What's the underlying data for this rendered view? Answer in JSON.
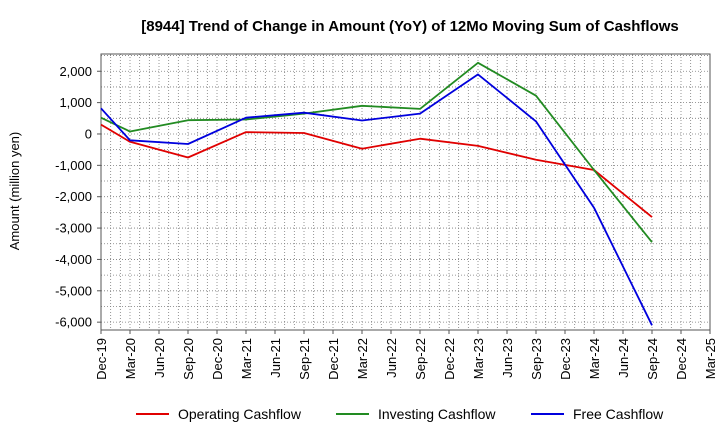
{
  "chart_data": {
    "type": "line",
    "title": "[8944]  Trend of Change in Amount (YoY) of 12Mo Moving Sum of Cashflows",
    "xlabel": "",
    "ylabel": "Amount (million yen)",
    "ylim": [
      -6250,
      2550
    ],
    "yticks": [
      2000,
      1000,
      0,
      -1000,
      -2000,
      -3000,
      -4000,
      -5000,
      -6000
    ],
    "ytick_labels": [
      "2,000",
      "1,000",
      "0",
      "-1,000",
      "-2,000",
      "-3,000",
      "-4,000",
      "-5,000",
      "-6,000"
    ],
    "categories": [
      "Dec-19",
      "Mar-20",
      "Jun-20",
      "Sep-20",
      "Dec-20",
      "Mar-21",
      "Jun-21",
      "Sep-21",
      "Dec-21",
      "Mar-22",
      "Jun-22",
      "Sep-22",
      "Dec-22",
      "Mar-23",
      "Jun-23",
      "Sep-23",
      "Dec-23",
      "Mar-24",
      "Jun-24",
      "Sep-24",
      "Dec-24",
      "Mar-25"
    ],
    "grid": true,
    "legend_position": "bottom",
    "series": [
      {
        "name": "Operating Cashflow",
        "color": "#e00000",
        "points": [
          [
            0,
            300
          ],
          [
            1,
            -250
          ],
          [
            3,
            -750
          ],
          [
            5,
            60
          ],
          [
            7,
            30
          ],
          [
            9,
            -470
          ],
          [
            11,
            -150
          ],
          [
            13,
            -380
          ],
          [
            15,
            -820
          ],
          [
            17,
            -1150
          ],
          [
            19,
            -2650
          ]
        ]
      },
      {
        "name": "Investing Cashflow",
        "color": "#228b22",
        "points": [
          [
            0,
            520
          ],
          [
            1,
            80
          ],
          [
            3,
            440
          ],
          [
            5,
            460
          ],
          [
            7,
            650
          ],
          [
            9,
            900
          ],
          [
            11,
            800
          ],
          [
            13,
            2270
          ],
          [
            15,
            1220
          ],
          [
            17,
            -1150
          ],
          [
            19,
            -3450
          ]
        ]
      },
      {
        "name": "Free Cashflow",
        "color": "#0000dd",
        "points": [
          [
            0,
            820
          ],
          [
            1,
            -200
          ],
          [
            3,
            -320
          ],
          [
            5,
            520
          ],
          [
            7,
            680
          ],
          [
            9,
            430
          ],
          [
            11,
            650
          ],
          [
            13,
            1900
          ],
          [
            15,
            400
          ],
          [
            17,
            -2350
          ],
          [
            19,
            -6100
          ]
        ]
      }
    ]
  }
}
